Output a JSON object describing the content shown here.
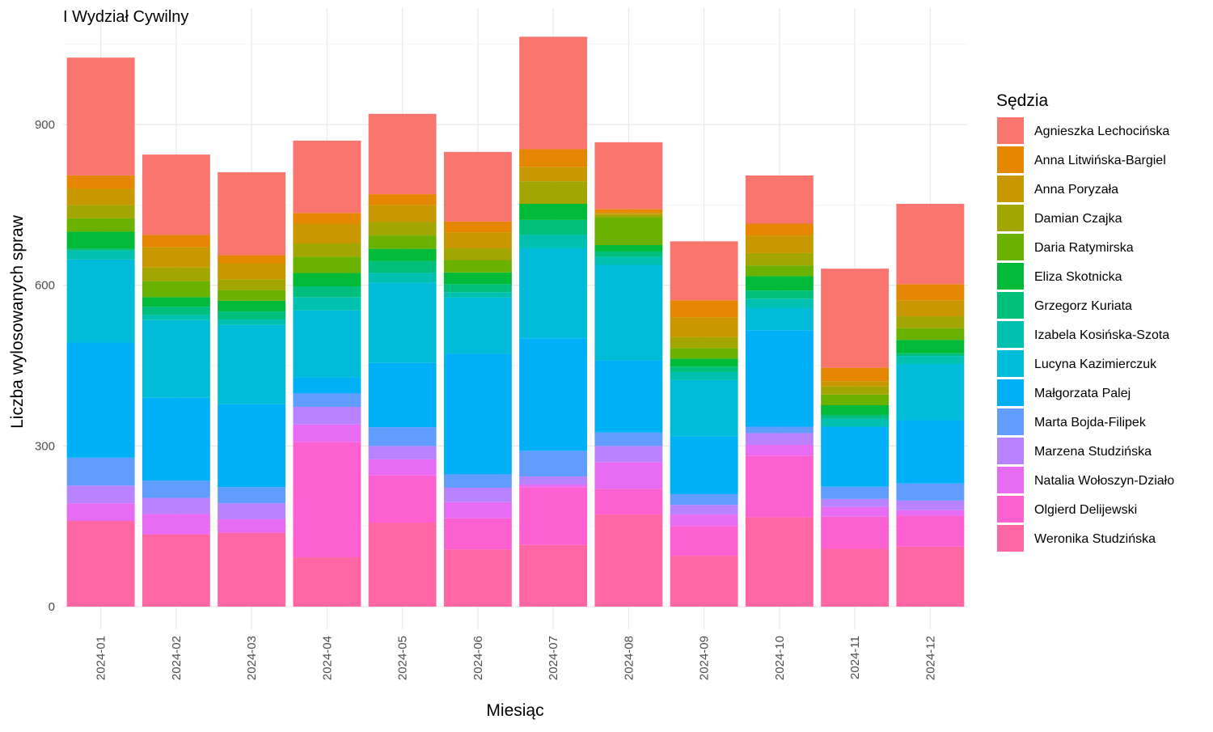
{
  "chart_data": {
    "type": "bar",
    "stacked": true,
    "title": "I Wydział Cywilny",
    "xlabel": "Miesiąc",
    "ylabel": "Liczba wylosowanych spraw",
    "ylim": [
      0,
      1100
    ],
    "yticks": [
      0,
      300,
      600,
      900
    ],
    "grid": true,
    "legend_title": "Sędzia",
    "legend_position": "right",
    "categories": [
      "2024-01",
      "2024-02",
      "2024-03",
      "2024-04",
      "2024-05",
      "2024-06",
      "2024-07",
      "2024-08",
      "2024-09",
      "2024-10",
      "2024-11",
      "2024-12"
    ],
    "series": [
      {
        "name": "Agnieszka Lechocińska",
        "color": "#F8766D",
        "values": [
          220,
          150,
          155,
          135,
          150,
          130,
          210,
          125,
          110,
          90,
          185,
          150
        ]
      },
      {
        "name": "Anna Litwińska-Bargiel",
        "color": "#E58700",
        "values": [
          25,
          23,
          15,
          20,
          20,
          20,
          33,
          7,
          32,
          22,
          25,
          30
        ]
      },
      {
        "name": "Anna Poryzała",
        "color": "#C99800",
        "values": [
          30,
          38,
          30,
          37,
          32,
          30,
          27,
          3,
          37,
          33,
          10,
          30
        ]
      },
      {
        "name": "Damian Czajka",
        "color": "#A3A500",
        "values": [
          25,
          25,
          20,
          25,
          25,
          22,
          42,
          5,
          20,
          23,
          15,
          22
        ]
      },
      {
        "name": "Daria Ratymirska",
        "color": "#6BB100",
        "values": [
          25,
          30,
          20,
          30,
          25,
          23,
          0,
          52,
          20,
          20,
          20,
          22
        ]
      },
      {
        "name": "Eliza Skotnicka",
        "color": "#00BA38",
        "values": [
          32,
          18,
          20,
          25,
          23,
          22,
          30,
          12,
          15,
          27,
          18,
          25
        ]
      },
      {
        "name": "Grzegorz Kuriata",
        "color": "#00BF7D",
        "values": [
          3,
          15,
          15,
          20,
          22,
          15,
          28,
          10,
          10,
          15,
          7,
          5
        ]
      },
      {
        "name": "Izabela Kosińska-Szota",
        "color": "#00C0AF",
        "values": [
          17,
          10,
          10,
          25,
          18,
          10,
          25,
          15,
          15,
          17,
          15,
          15
        ]
      },
      {
        "name": "Lucyna Kazimierczuk",
        "color": "#00BCD8",
        "values": [
          155,
          145,
          148,
          125,
          150,
          105,
          168,
          178,
          105,
          42,
          0,
          105
        ]
      },
      {
        "name": "Małgorzata Palej",
        "color": "#00B0F6",
        "values": [
          215,
          155,
          155,
          30,
          120,
          225,
          210,
          135,
          108,
          180,
          112,
          118
        ]
      },
      {
        "name": "Marta Bojda-Filipek",
        "color": "#619CFF",
        "values": [
          52,
          32,
          30,
          25,
          35,
          25,
          48,
          25,
          20,
          12,
          23,
          32
        ]
      },
      {
        "name": "Marzena Studzińska",
        "color": "#B983FF",
        "values": [
          33,
          30,
          30,
          33,
          25,
          27,
          15,
          30,
          18,
          22,
          15,
          18
        ]
      },
      {
        "name": "Natalia Wołoszyn-Działo",
        "color": "#E76BF3",
        "values": [
          33,
          38,
          25,
          33,
          30,
          30,
          5,
          50,
          22,
          20,
          18,
          10
        ]
      },
      {
        "name": "Olgierd Delijewski",
        "color": "#FD61D1",
        "values": [
          0,
          0,
          0,
          215,
          88,
          58,
          108,
          48,
          55,
          115,
          60,
          58
        ]
      },
      {
        "name": "Weronika Studzińska",
        "color": "#FF67A4",
        "values": [
          160,
          135,
          138,
          92,
          157,
          107,
          115,
          172,
          95,
          167,
          108,
          112
        ]
      }
    ]
  }
}
